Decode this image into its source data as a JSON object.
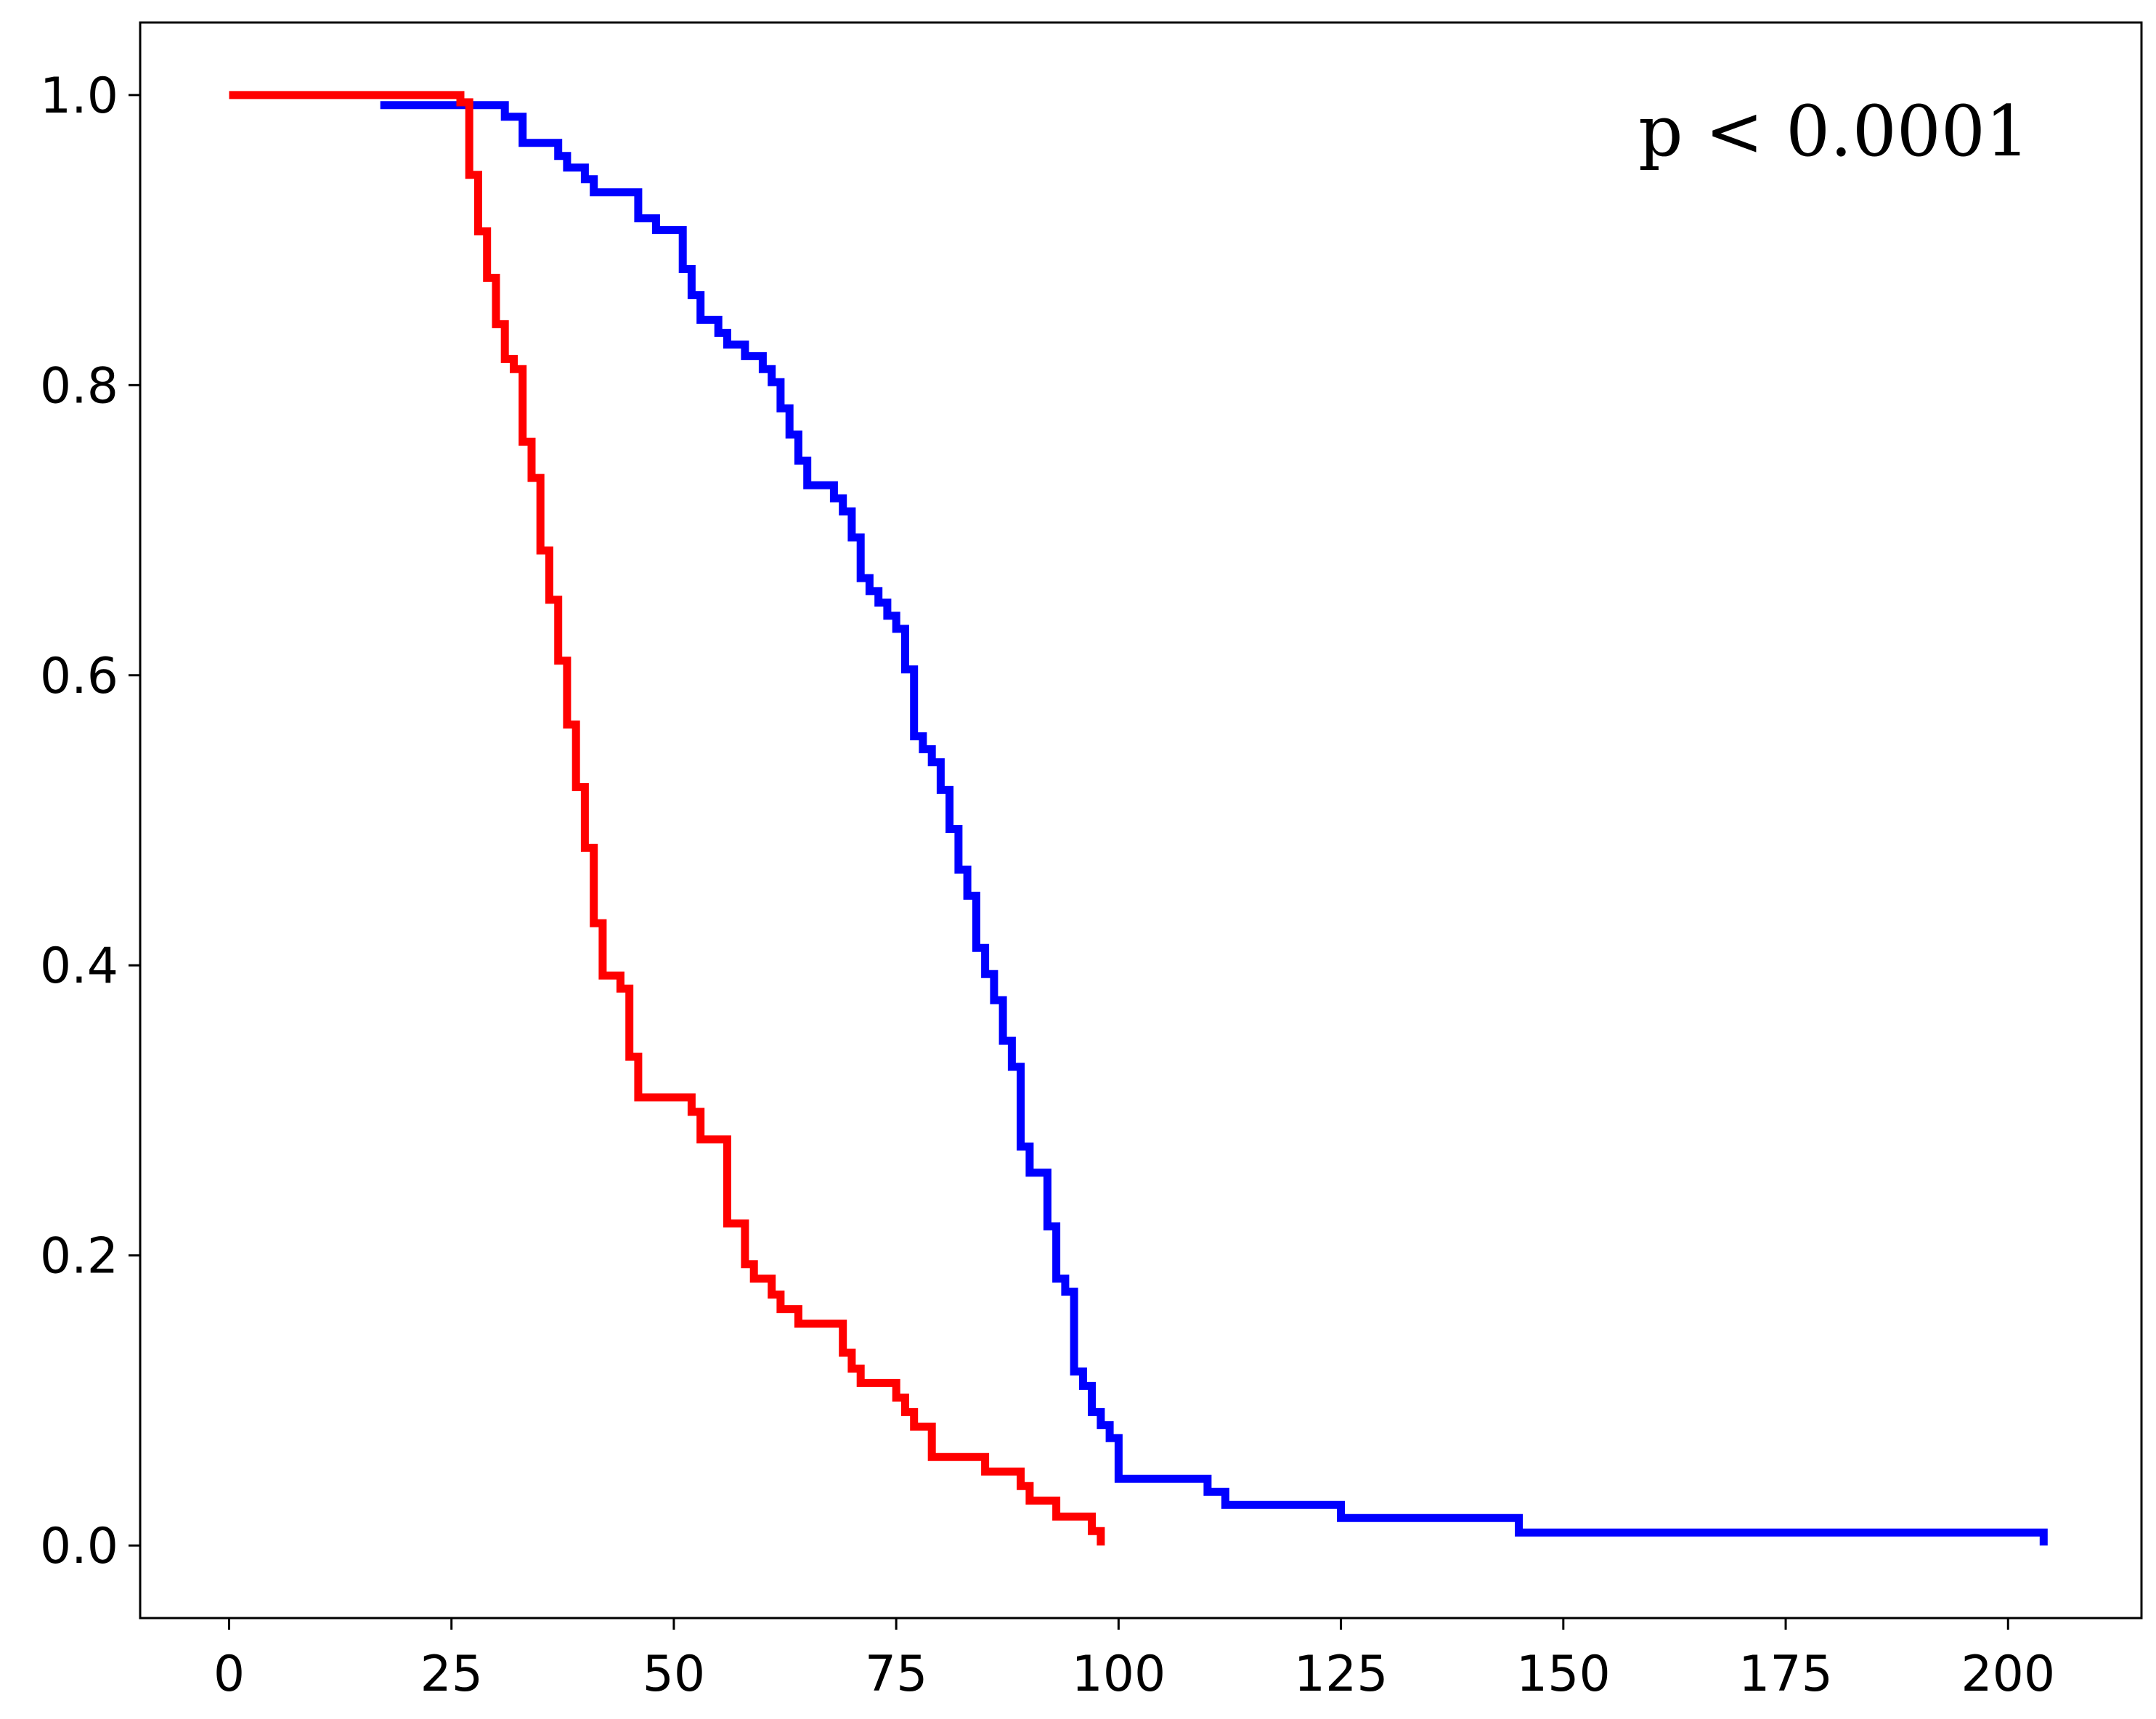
{
  "chart_data": {
    "type": "line",
    "step": "post",
    "title": "",
    "xlabel": "",
    "ylabel": "",
    "xlim": [
      -10,
      215
    ],
    "ylim": [
      -0.05,
      1.05
    ],
    "x_ticks": [
      0,
      25,
      50,
      75,
      100,
      125,
      150,
      175,
      200
    ],
    "x_tick_labels": [
      "0",
      "25",
      "50",
      "75",
      "100",
      "125",
      "150",
      "175",
      "200"
    ],
    "y_ticks": [
      0.0,
      0.2,
      0.4,
      0.6,
      0.8,
      1.0
    ],
    "y_tick_labels": [
      "0.0",
      "0.2",
      "0.4",
      "0.6",
      "0.8",
      "1.0"
    ],
    "grid": false,
    "annotation": "p < 0.0001",
    "series": [
      {
        "color": "#0000ff",
        "x": [
          17,
          31,
          33,
          37,
          38,
          40,
          41,
          46,
          48,
          51,
          52,
          53,
          55,
          56,
          58,
          60,
          61,
          62,
          63,
          64,
          65,
          68,
          69,
          70,
          71,
          72,
          73,
          74,
          75,
          76,
          77,
          78,
          79,
          80,
          81,
          82,
          83,
          84,
          85,
          86,
          87,
          88,
          89,
          90,
          92,
          93,
          94,
          95,
          96,
          97,
          98,
          99,
          100,
          110,
          112,
          125,
          145,
          204
        ],
        "y": [
          0.993,
          0.985,
          0.967,
          0.958,
          0.95,
          0.942,
          0.933,
          0.915,
          0.907,
          0.88,
          0.862,
          0.845,
          0.836,
          0.828,
          0.82,
          0.811,
          0.802,
          0.784,
          0.766,
          0.748,
          0.731,
          0.722,
          0.713,
          0.695,
          0.667,
          0.658,
          0.65,
          0.641,
          0.632,
          0.604,
          0.558,
          0.549,
          0.54,
          0.521,
          0.494,
          0.466,
          0.448,
          0.412,
          0.394,
          0.376,
          0.348,
          0.33,
          0.275,
          0.257,
          0.22,
          0.184,
          0.175,
          0.12,
          0.11,
          0.092,
          0.083,
          0.074,
          0.046,
          0.037,
          0.028,
          0.019,
          0.009,
          0.0
        ]
      },
      {
        "color": "#ff0000",
        "x": [
          0,
          26,
          27,
          28,
          29,
          30,
          31,
          32,
          33,
          34,
          35,
          36,
          37,
          38,
          39,
          40,
          41,
          42,
          44,
          45,
          46,
          52,
          53,
          56,
          58,
          59,
          61,
          62,
          64,
          69,
          70,
          71,
          75,
          76,
          77,
          79,
          85,
          89,
          90,
          93,
          97,
          98
        ],
        "y": [
          1.0,
          0.995,
          0.945,
          0.906,
          0.874,
          0.842,
          0.818,
          0.811,
          0.761,
          0.736,
          0.686,
          0.652,
          0.61,
          0.566,
          0.523,
          0.481,
          0.429,
          0.393,
          0.384,
          0.337,
          0.309,
          0.299,
          0.28,
          0.222,
          0.194,
          0.184,
          0.173,
          0.163,
          0.153,
          0.133,
          0.122,
          0.112,
          0.102,
          0.092,
          0.082,
          0.061,
          0.051,
          0.041,
          0.031,
          0.02,
          0.01,
          0.0
        ]
      }
    ]
  }
}
